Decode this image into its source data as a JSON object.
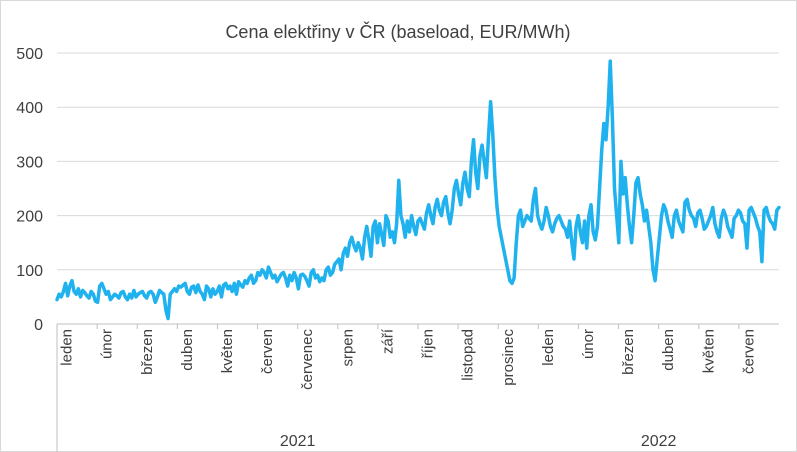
{
  "chart_data": {
    "type": "line",
    "title": "Cena elektřiny v ČR (baseload, EUR/MWh)",
    "xlabel": "",
    "ylabel": "",
    "ylim": [
      0,
      500
    ],
    "yticks": [
      0,
      100,
      200,
      300,
      400,
      500
    ],
    "grid": "horizontal",
    "legend": "none",
    "colors": {
      "line": "#1FB2EE",
      "grid": "#D9D9D9",
      "axis": "#BFBFBF",
      "text": "#404040"
    },
    "month_labels": [
      "leden",
      "únor",
      "březen",
      "duben",
      "květen",
      "červen",
      "červenec",
      "srpen",
      "září",
      "říjen",
      "listopad",
      "prosinec",
      "leden",
      "únor",
      "březen",
      "duben",
      "květen",
      "červen"
    ],
    "year_labels": [
      "2021",
      "2022"
    ],
    "series": [
      {
        "values": [
          45,
          55,
          50,
          60,
          75,
          52,
          70,
          80,
          60,
          55,
          65,
          50,
          62,
          58,
          52,
          48,
          60,
          55,
          42,
          40,
          70,
          75,
          65,
          55,
          60,
          45,
          50,
          55,
          52,
          48,
          58,
          60,
          50,
          45,
          55,
          48,
          62,
          50,
          55,
          58,
          60,
          52,
          48,
          58,
          60,
          55,
          40,
          50,
          62,
          58,
          55,
          25,
          10,
          55,
          60,
          65,
          60,
          70,
          68,
          72,
          75,
          60,
          55,
          68,
          70,
          58,
          72,
          60,
          55,
          45,
          70,
          65,
          50,
          65,
          55,
          60,
          70,
          50,
          72,
          75,
          65,
          70,
          60,
          75,
          55,
          78,
          72,
          68,
          80,
          75,
          85,
          90,
          75,
          80,
          95,
          90,
          100,
          95,
          85,
          105,
          95,
          85,
          90,
          78,
          85,
          92,
          95,
          85,
          70,
          90,
          80,
          95,
          85,
          65,
          90,
          92,
          88,
          80,
          70,
          95,
          100,
          85,
          90,
          78,
          85,
          80,
          100,
          105,
          90,
          95,
          110,
          115,
          120,
          100,
          130,
          140,
          125,
          150,
          160,
          145,
          135,
          150,
          140,
          120,
          160,
          180,
          155,
          125,
          180,
          190,
          150,
          185,
          165,
          145,
          200,
          190,
          160,
          170,
          150,
          185,
          265,
          200,
          185,
          160,
          190,
          170,
          200,
          180,
          165,
          190,
          195,
          185,
          175,
          205,
          220,
          200,
          185,
          215,
          230,
          210,
          200,
          225,
          235,
          205,
          185,
          210,
          250,
          265,
          240,
          220,
          260,
          280,
          250,
          235,
          300,
          340,
          280,
          250,
          310,
          330,
          300,
          270,
          345,
          410,
          350,
          270,
          215,
          180,
          160,
          140,
          120,
          100,
          80,
          75,
          85,
          150,
          200,
          210,
          180,
          190,
          200,
          195,
          190,
          230,
          250,
          200,
          185,
          175,
          190,
          215,
          200,
          180,
          170,
          185,
          195,
          200,
          190,
          180,
          175,
          160,
          190,
          150,
          120,
          180,
          200,
          170,
          150,
          190,
          140,
          200,
          220,
          170,
          155,
          180,
          250,
          320,
          370,
          340,
          400,
          485,
          380,
          250,
          200,
          150,
          300,
          240,
          270,
          220,
          180,
          150,
          200,
          260,
          270,
          240,
          220,
          190,
          210,
          180,
          150,
          100,
          80,
          120,
          160,
          200,
          220,
          210,
          190,
          175,
          160,
          200,
          210,
          190,
          180,
          170,
          225,
          230,
          210,
          200,
          195,
          180,
          205,
          210,
          195,
          175,
          180,
          190,
          200,
          215,
          185,
          170,
          160,
          195,
          210,
          200,
          180,
          170,
          160,
          195,
          200,
          210,
          205,
          190,
          185,
          140,
          210,
          215,
          205,
          195,
          180,
          170,
          115,
          210,
          215,
          200,
          190,
          185,
          175,
          210,
          215
        ]
      }
    ]
  }
}
